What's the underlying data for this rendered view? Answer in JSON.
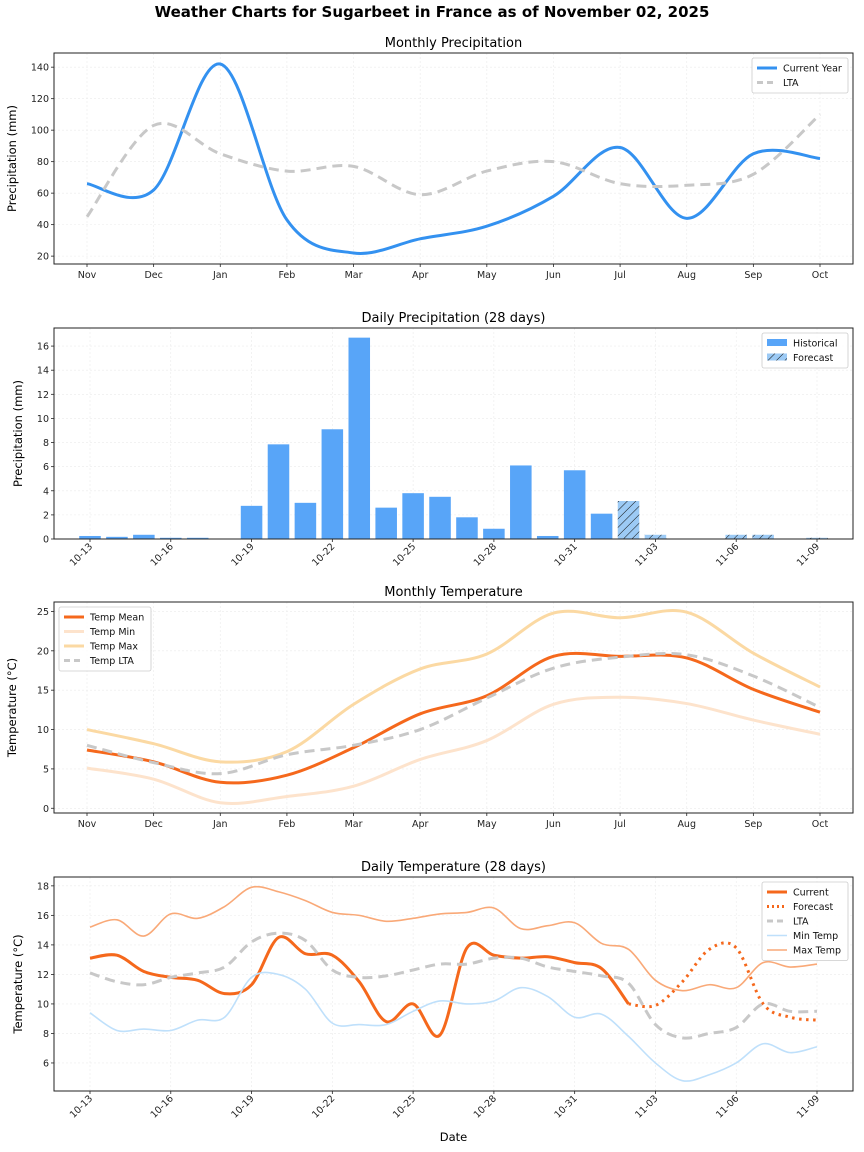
{
  "title": "Weather Charts for Sugarbeet in France as of November 02, 2025",
  "chart_data": [
    {
      "id": "monthly-precip",
      "type": "line",
      "title": "Monthly Precipitation",
      "xlabel": "",
      "ylabel": "Precipitation (mm)",
      "categories": [
        "Nov",
        "Dec",
        "Jan",
        "Feb",
        "Mar",
        "Apr",
        "May",
        "Jun",
        "Jul",
        "Aug",
        "Sep",
        "Oct"
      ],
      "yticks": [
        20,
        40,
        60,
        80,
        100,
        120,
        140
      ],
      "ylim": [
        15,
        149
      ],
      "grid": true,
      "legend": "top-right",
      "series": [
        {
          "name": "Current Year",
          "color": "#3391f0",
          "style": "solid",
          "values": [
            66,
            62,
            142,
            43,
            22,
            31,
            39,
            58,
            89,
            44,
            85,
            82
          ]
        },
        {
          "name": "LTA",
          "color": "#c8c8c8",
          "style": "dashed",
          "values": [
            45,
            103,
            85,
            74,
            77,
            59,
            74,
            80,
            66,
            65,
            72,
            110
          ]
        }
      ]
    },
    {
      "id": "daily-precip",
      "type": "bar",
      "title": "Daily Precipitation (28 days)",
      "xlabel": "",
      "ylabel": "Precipitation (mm)",
      "categories": [
        "10-13",
        "10-14",
        "10-15",
        "10-16",
        "10-17",
        "10-18",
        "10-19",
        "10-20",
        "10-21",
        "10-22",
        "10-23",
        "10-24",
        "10-25",
        "10-26",
        "10-27",
        "10-28",
        "10-29",
        "10-30",
        "10-31",
        "11-01",
        "11-02",
        "11-03",
        "11-04",
        "11-05",
        "11-06",
        "11-07",
        "11-08",
        "11-09"
      ],
      "xticks": [
        "10-13",
        "10-16",
        "10-19",
        "10-22",
        "10-25",
        "10-28",
        "10-31",
        "11-03",
        "11-06",
        "11-09"
      ],
      "yticks": [
        0,
        2,
        4,
        6,
        8,
        10,
        12,
        14,
        16
      ],
      "ylim": [
        0,
        17.5
      ],
      "grid": true,
      "legend": "top-right",
      "series": [
        {
          "name": "Historical",
          "color": "#58a5f8",
          "values": [
            0.25,
            0.18,
            0.35,
            0.1,
            0.1,
            0,
            2.75,
            7.85,
            3.0,
            9.1,
            16.7,
            2.6,
            3.8,
            3.5,
            1.8,
            0.85,
            6.1,
            0.25,
            5.7,
            2.1,
            null,
            null,
            null,
            null,
            null,
            null,
            null,
            null
          ]
        },
        {
          "name": "Forecast",
          "color": "#9ccaf5",
          "hatch": true,
          "values": [
            null,
            null,
            null,
            null,
            null,
            null,
            null,
            null,
            null,
            null,
            null,
            null,
            null,
            null,
            null,
            null,
            null,
            null,
            null,
            null,
            3.15,
            0.35,
            0,
            0,
            0.35,
            0.35,
            0,
            0.1
          ]
        }
      ]
    },
    {
      "id": "monthly-temp",
      "type": "line",
      "title": "Monthly Temperature",
      "xlabel": "",
      "ylabel": "Temperature (°C)",
      "categories": [
        "Nov",
        "Dec",
        "Jan",
        "Feb",
        "Mar",
        "Apr",
        "May",
        "Jun",
        "Jul",
        "Aug",
        "Sep",
        "Oct"
      ],
      "yticks": [
        0,
        5,
        10,
        15,
        20,
        25
      ],
      "ylim": [
        -0.6,
        26.2
      ],
      "grid": true,
      "legend": "top-left",
      "series": [
        {
          "name": "Temp Mean",
          "color": "#f5681c",
          "style": "solid",
          "values": [
            7.4,
            5.9,
            3.3,
            4.2,
            7.7,
            12.0,
            14.3,
            19.3,
            19.3,
            19.1,
            15.1,
            12.2
          ]
        },
        {
          "name": "Temp Min",
          "color": "#fde3cc",
          "style": "solid",
          "values": [
            5.1,
            3.7,
            0.7,
            1.5,
            2.8,
            6.2,
            8.6,
            13.2,
            14.1,
            13.3,
            11.2,
            9.4
          ]
        },
        {
          "name": "Temp Max",
          "color": "#fbd9a3",
          "style": "solid",
          "values": [
            10.0,
            8.2,
            5.9,
            7.2,
            13.2,
            17.7,
            19.6,
            24.8,
            24.2,
            24.9,
            19.7,
            15.4
          ]
        },
        {
          "name": "Temp LTA",
          "color": "#c8c8c8",
          "style": "dashed",
          "values": [
            8.0,
            5.8,
            4.4,
            6.8,
            8.0,
            10.0,
            14.0,
            17.8,
            19.2,
            19.5,
            16.8,
            12.8
          ]
        }
      ]
    },
    {
      "id": "daily-temp",
      "type": "line",
      "title": "Daily Temperature (28 days)",
      "xlabel": "Date",
      "ylabel": "Temperature (°C)",
      "categories": [
        "10-13",
        "10-14",
        "10-15",
        "10-16",
        "10-17",
        "10-18",
        "10-19",
        "10-20",
        "10-21",
        "10-22",
        "10-23",
        "10-24",
        "10-25",
        "10-26",
        "10-27",
        "10-28",
        "10-29",
        "10-30",
        "10-31",
        "11-01",
        "11-02",
        "11-03",
        "11-04",
        "11-05",
        "11-06",
        "11-07",
        "11-08",
        "11-09"
      ],
      "xticks": [
        "10-13",
        "10-16",
        "10-19",
        "10-22",
        "10-25",
        "10-28",
        "10-31",
        "11-03",
        "11-06",
        "11-09"
      ],
      "yticks": [
        6,
        8,
        10,
        12,
        14,
        16,
        18
      ],
      "ylim": [
        4.1,
        18.6
      ],
      "grid": true,
      "legend": "top-right",
      "series": [
        {
          "name": "Current",
          "color": "#f5681c",
          "style": "solid",
          "values": [
            13.1,
            13.3,
            12.2,
            11.8,
            11.6,
            10.7,
            11.3,
            14.5,
            13.4,
            13.3,
            11.5,
            8.8,
            10.0,
            7.9,
            13.8,
            13.3,
            13.1,
            13.2,
            12.8,
            12.4,
            10.0,
            null,
            null,
            null,
            null,
            null,
            null,
            null
          ]
        },
        {
          "name": "Forecast",
          "color": "#f5681c",
          "style": "dotted",
          "values": [
            null,
            null,
            null,
            null,
            null,
            null,
            null,
            null,
            null,
            null,
            null,
            null,
            null,
            null,
            null,
            null,
            null,
            null,
            null,
            null,
            10.0,
            9.9,
            11.5,
            13.7,
            13.8,
            10.0,
            9.1,
            8.9
          ]
        },
        {
          "name": "LTA",
          "color": "#c8c8c8",
          "style": "dashed",
          "values": [
            12.1,
            11.5,
            11.3,
            11.8,
            12.1,
            12.5,
            14.2,
            14.8,
            14.3,
            12.3,
            11.8,
            11.9,
            12.3,
            12.7,
            12.7,
            13.1,
            13.1,
            12.5,
            12.2,
            11.9,
            11.4,
            8.6,
            7.7,
            8.0,
            8.4,
            10.0,
            9.5,
            9.5
          ]
        },
        {
          "name": "Min Temp",
          "color": "#bfe0fb",
          "style": "thin",
          "values": [
            9.4,
            8.2,
            8.3,
            8.2,
            8.9,
            9.1,
            11.8,
            12.0,
            11.0,
            8.7,
            8.6,
            8.6,
            9.5,
            10.2,
            10.0,
            10.2,
            11.1,
            10.5,
            9.1,
            9.3,
            7.8,
            6.0,
            4.8,
            5.2,
            6.0,
            7.3,
            6.7,
            7.1
          ]
        },
        {
          "name": "Max Temp",
          "color": "#f9a978",
          "style": "thin",
          "values": [
            15.2,
            15.7,
            14.6,
            16.1,
            15.8,
            16.6,
            17.9,
            17.6,
            17.0,
            16.2,
            16.0,
            15.6,
            15.8,
            16.1,
            16.2,
            16.5,
            15.1,
            15.3,
            15.5,
            14.1,
            13.7,
            11.6,
            10.9,
            11.3,
            11.1,
            12.8,
            12.5,
            12.7
          ]
        }
      ]
    }
  ]
}
